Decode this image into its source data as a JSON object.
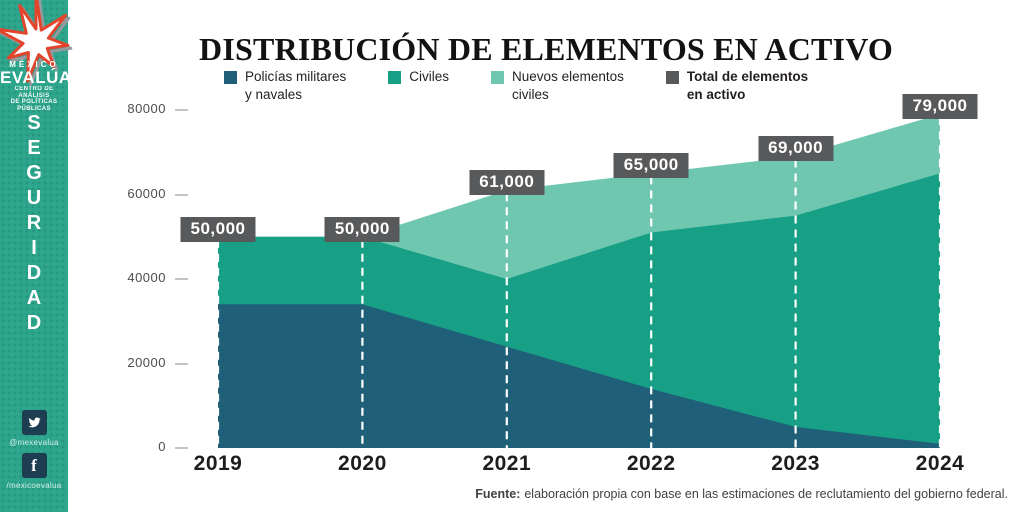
{
  "title": "DISTRIBUCIÓN DE ELEMENTOS EN ACTIVO",
  "sidebar": {
    "bg_color": "#2BA48B",
    "logo_icon": "mexico-evalua-star",
    "brand": {
      "top": "MÉXICO",
      "name": "EVALÚA",
      "sub1": "CENTRO DE ANÁLISIS",
      "sub2": "DE POLÍTICAS PÚBLICAS"
    },
    "word_vertical": "SEGURIDAD",
    "social": [
      {
        "icon": "twitter-icon",
        "handle": "@mexevalua"
      },
      {
        "icon": "facebook-icon",
        "handle": "/mexicoevalua"
      }
    ]
  },
  "legend": [
    {
      "lines": [
        "Policías militares",
        "y navales"
      ],
      "color": "#1F6078",
      "bold": false
    },
    {
      "lines": [
        "Civiles"
      ],
      "color": "#17A086",
      "bold": false
    },
    {
      "lines": [
        "Nuevos elementos",
        "civiles"
      ],
      "color": "#70C7B0",
      "bold": false
    },
    {
      "lines": [
        "Total de elementos",
        "en activo"
      ],
      "color": "#58595B",
      "bold": true
    }
  ],
  "chart_data": {
    "type": "area",
    "stacked": true,
    "title": "DISTRIBUCIÓN DE ELEMENTOS EN ACTIVO",
    "x": [
      2019,
      2020,
      2021,
      2022,
      2023,
      2024
    ],
    "x_labels": [
      "2019",
      "2020",
      "2021",
      "2022",
      "2023",
      "2024"
    ],
    "series": [
      {
        "name": "Policías militares y navales",
        "color": "#1F6078",
        "values": [
          34000,
          34000,
          24000,
          14000,
          5000,
          1000
        ]
      },
      {
        "name": "Civiles",
        "color": "#17A086",
        "values": [
          16000,
          16000,
          16000,
          37000,
          50000,
          64000
        ]
      },
      {
        "name": "Nuevos elementos civiles",
        "color": "#70C7B0",
        "values": [
          0,
          0,
          21000,
          14000,
          14000,
          14000
        ]
      }
    ],
    "totals": {
      "name": "Total de elementos en activo",
      "color": "#58595B",
      "values": [
        50000,
        50000,
        61000,
        65000,
        69000,
        79000
      ],
      "labels": [
        "50,000",
        "50,000",
        "61,000",
        "65,000",
        "69,000",
        "79,000"
      ]
    },
    "ylim": [
      0,
      80000
    ],
    "yticks": [
      0,
      20000,
      40000,
      60000,
      80000
    ],
    "grid": false,
    "guide_lines": "vertical white dashed line at each year from area top to baseline",
    "legend_position": "top"
  },
  "footer": {
    "label": "Fuente:",
    "text": "elaboración propia con base en las estimaciones de reclutamiento del gobierno federal."
  },
  "colors": {
    "background": "#FFFFFF",
    "sidebar": "#2BA48B",
    "militares": "#1F6078",
    "civiles": "#17A086",
    "nuevos": "#70C7B0",
    "label_box": "#58595B",
    "social_square": "#1C3E50",
    "title_text": "#121212"
  }
}
